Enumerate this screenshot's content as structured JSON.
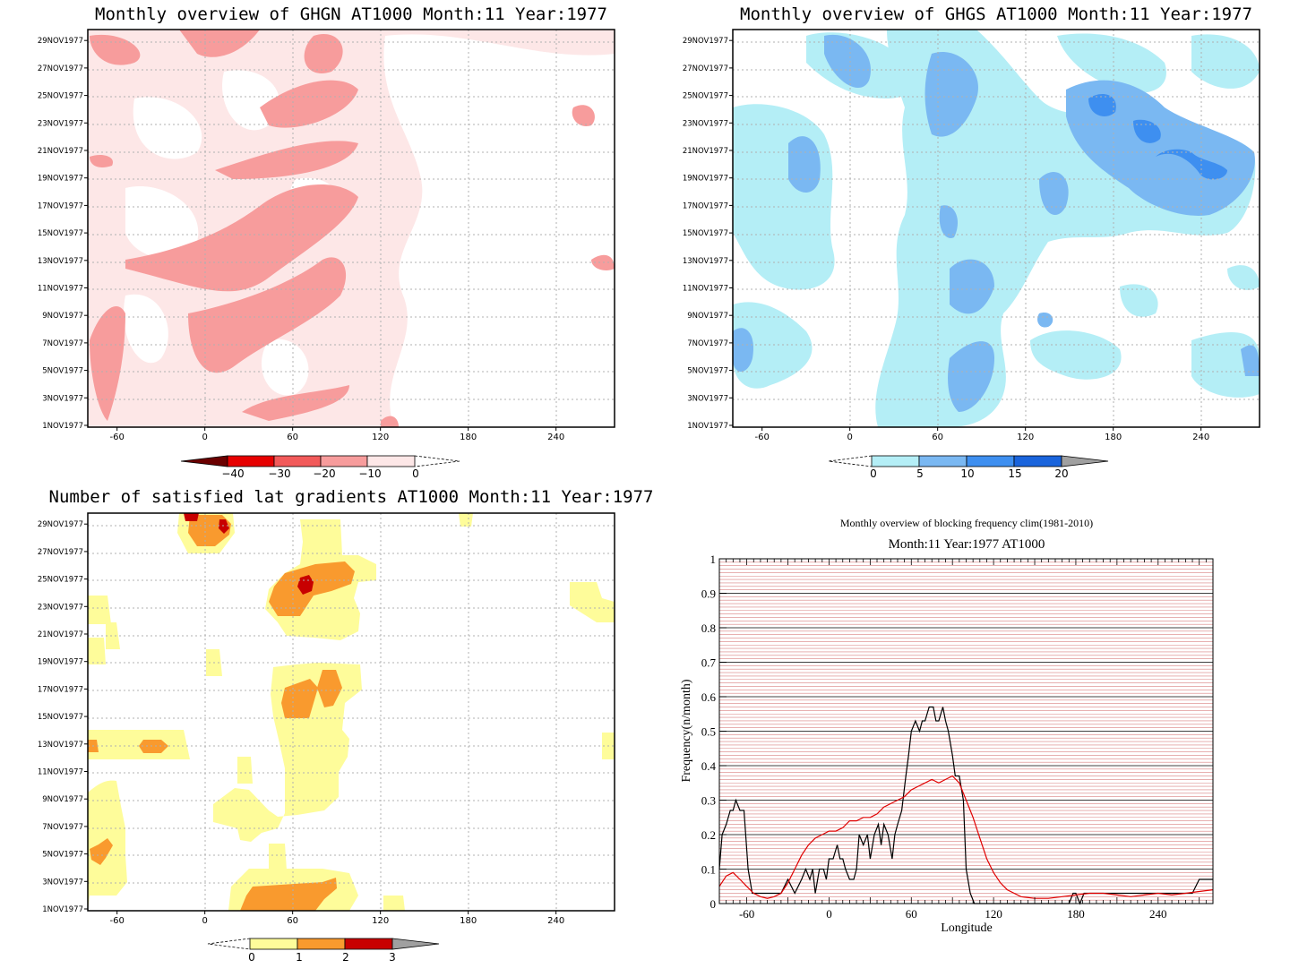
{
  "panels": {
    "ghgn": {
      "title": "Monthly overview of GHGN AT1000 Month:11 Year:1977",
      "colorbar_labels": [
        "−40",
        "−30",
        "−20",
        "−10",
        "0"
      ],
      "colors": {
        "c40": "#6b0000",
        "c30": "#e60000",
        "c20": "#f25a5a",
        "c10": "#f79c9c",
        "c0": "#fde7e7"
      }
    },
    "ghgs": {
      "title": "Monthly overview of GHGS AT1000 Month:11 Year:1977",
      "colorbar_labels": [
        "0",
        "5",
        "10",
        "15",
        "20"
      ],
      "colors": {
        "c0": "#b4eef6",
        "c5": "#7ab8f2",
        "c10": "#3e8ff0",
        "c15": "#1a64dc",
        "c20": "#a0a0a0"
      }
    },
    "lat": {
      "title": "Number of satisfied lat gradients AT1000 Month:11 Year:1977",
      "colorbar_labels": [
        "0",
        "1",
        "2",
        "3"
      ],
      "colors": {
        "c0": "#fefc9a",
        "c1": "#f99a2e",
        "c2": "#c80000",
        "c3": "#a0a0a0"
      }
    },
    "freq": {
      "title": "Monthly overview of blocking frequency clim(1981-2010)",
      "subtitle": "Month:11 Year:1977  AT1000"
    }
  },
  "hovmoller_axes": {
    "x_ticks": [
      "-60",
      "0",
      "60",
      "120",
      "180",
      "240"
    ],
    "y_ticks": [
      "1NOV1977",
      "3NOV1977",
      "5NOV1977",
      "7NOV1977",
      "9NOV1977",
      "11NOV1977",
      "13NOV1977",
      "15NOV1977",
      "17NOV1977",
      "19NOV1977",
      "21NOV1977",
      "23NOV1977",
      "25NOV1977",
      "27NOV1977",
      "29NOV1977"
    ]
  },
  "chart_data": {
    "type": "line",
    "title": "Monthly overview of blocking frequency clim(1981-2010)",
    "subtitle": "Month:11 Year:1977  AT1000",
    "xlabel": "Longitude",
    "ylabel": "Frequency(n/month)",
    "xlim": [
      -80,
      280
    ],
    "ylim": [
      0,
      1
    ],
    "x_ticks": [
      -60,
      0,
      60,
      120,
      180,
      240
    ],
    "y_ticks": [
      0,
      0.1,
      0.2,
      0.3,
      0.4,
      0.5,
      0.6,
      0.7,
      0.8,
      0.9,
      1
    ],
    "grid": true,
    "series": [
      {
        "color": "#000000",
        "x": [
          -80,
          -78,
          -75,
          -72,
          -70,
          -68,
          -65,
          -62,
          -59,
          -56,
          -53,
          -50,
          -45,
          -40,
          -35,
          -30,
          -25,
          -20,
          -17,
          -14,
          -12,
          -10,
          -7,
          -4,
          -2,
          0,
          3,
          6,
          8,
          10,
          12,
          15,
          18,
          20,
          22,
          25,
          28,
          30,
          33,
          36,
          38,
          40,
          43,
          46,
          48,
          50,
          53,
          56,
          58,
          60,
          63,
          66,
          68,
          70,
          73,
          76,
          78,
          80,
          83,
          85,
          87,
          90,
          92,
          95,
          98,
          100,
          103,
          106,
          110,
          115,
          118,
          120,
          125,
          130,
          140,
          150,
          160,
          170,
          175,
          178,
          180,
          183,
          186,
          190,
          200,
          210,
          220,
          230,
          240,
          250,
          260,
          262,
          265,
          270,
          275,
          280
        ],
        "y": [
          0.1,
          0.2,
          0.23,
          0.27,
          0.27,
          0.3,
          0.27,
          0.27,
          0.1,
          0.03,
          0.03,
          0.03,
          0.03,
          0.03,
          0.03,
          0.07,
          0.03,
          0.07,
          0.1,
          0.07,
          0.1,
          0.03,
          0.1,
          0.1,
          0.07,
          0.13,
          0.13,
          0.17,
          0.13,
          0.13,
          0.1,
          0.07,
          0.07,
          0.1,
          0.2,
          0.17,
          0.2,
          0.13,
          0.2,
          0.23,
          0.17,
          0.23,
          0.2,
          0.13,
          0.2,
          0.23,
          0.27,
          0.37,
          0.43,
          0.5,
          0.53,
          0.5,
          0.53,
          0.53,
          0.57,
          0.57,
          0.53,
          0.53,
          0.57,
          0.53,
          0.5,
          0.43,
          0.37,
          0.37,
          0.3,
          0.1,
          0.03,
          0.0,
          0.0,
          0.0,
          0.0,
          0.0,
          0.0,
          0.0,
          0.0,
          0.0,
          0.0,
          0.0,
          0.0,
          0.03,
          0.03,
          0.0,
          0.03,
          0.03,
          0.03,
          0.03,
          0.03,
          0.03,
          0.03,
          0.03,
          0.03,
          0.03,
          0.03,
          0.07,
          0.07,
          0.07
        ]
      },
      {
        "color": "#e00000",
        "x": [
          -80,
          -75,
          -70,
          -65,
          -60,
          -55,
          -50,
          -45,
          -40,
          -35,
          -30,
          -25,
          -20,
          -15,
          -10,
          -5,
          0,
          5,
          10,
          15,
          20,
          25,
          30,
          35,
          40,
          45,
          50,
          55,
          60,
          65,
          70,
          75,
          80,
          85,
          90,
          95,
          100,
          105,
          110,
          115,
          120,
          125,
          130,
          140,
          150,
          160,
          170,
          180,
          190,
          200,
          210,
          220,
          230,
          240,
          250,
          260,
          270,
          280
        ],
        "y": [
          0.05,
          0.08,
          0.09,
          0.07,
          0.05,
          0.03,
          0.02,
          0.015,
          0.02,
          0.03,
          0.06,
          0.1,
          0.14,
          0.17,
          0.19,
          0.2,
          0.21,
          0.21,
          0.22,
          0.24,
          0.24,
          0.25,
          0.25,
          0.26,
          0.28,
          0.29,
          0.3,
          0.31,
          0.33,
          0.34,
          0.35,
          0.36,
          0.35,
          0.36,
          0.37,
          0.35,
          0.3,
          0.25,
          0.19,
          0.13,
          0.09,
          0.06,
          0.04,
          0.02,
          0.015,
          0.015,
          0.02,
          0.025,
          0.03,
          0.03,
          0.025,
          0.02,
          0.025,
          0.03,
          0.025,
          0.03,
          0.035,
          0.04
        ]
      }
    ]
  }
}
